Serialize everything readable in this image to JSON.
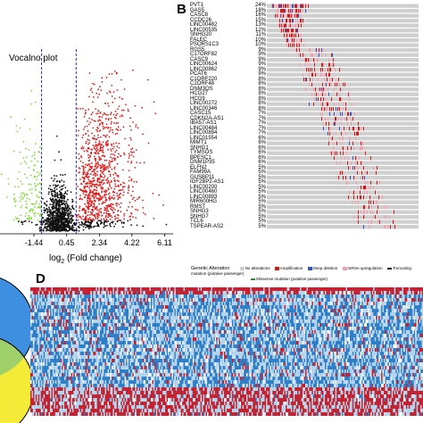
{
  "figure": {
    "panel_b_letter": "B",
    "panel_d_letter": "D",
    "colors": {
      "black": "#111111",
      "green": "#7fdc3a",
      "red": "#e01e1e",
      "blue_line": "#2b2bd4",
      "oncoprint_bg": "#cfcfcf",
      "oncoprint_red": "#d01a1a",
      "oncoprint_pink": "#f2a0b0",
      "oncoprint_blue": "#3355cc",
      "heat_blue": "#2f7fc8",
      "heat_light": "#bcd8ee",
      "heat_red": "#c8202c",
      "venn_blue": "#3e8fe0",
      "venn_yellow": "#f4ea38"
    }
  },
  "volcano": {
    "title": "Vocalno plot",
    "xlabel": "log2 (Fold change)",
    "xlabel_base": "log",
    "xlabel_sub": "2",
    "xlabel_rest": " (Fold change)",
    "ticks": [
      "-1.44",
      "0.45",
      "2.34",
      "4.22",
      "6.11"
    ]
  },
  "chart_data": {
    "type": "scatter",
    "title": "Vocalno plot",
    "xlabel": "log2 (Fold change)",
    "x_ticks": [
      -1.44,
      0.45,
      2.34,
      4.22,
      6.11
    ],
    "xlim": [
      -3.4,
      6.6
    ],
    "threshold_lines": [
      -1.0,
      1.0
    ],
    "series": []
  },
  "oncoprint": {
    "genes": [
      {
        "name": "PVT1",
        "pct": "24%"
      },
      {
        "name": "GAS5",
        "pct": "18%"
      },
      {
        "name": "CASC8",
        "pct": "16%"
      },
      {
        "name": "CCDC26",
        "pct": "15%"
      },
      {
        "name": "LINC00482",
        "pct": "13%"
      },
      {
        "name": "LINC00535",
        "pct": "12%"
      },
      {
        "name": "SNHG20",
        "pct": "11%"
      },
      {
        "name": "FALEC",
        "pct": "10%"
      },
      {
        "name": "PSORS1C3",
        "pct": "10%"
      },
      {
        "name": "RGS5",
        "pct": "9%"
      },
      {
        "name": "C17ORF82",
        "pct": "9%"
      },
      {
        "name": "CASC9",
        "pct": "9%"
      },
      {
        "name": "LINC00624",
        "pct": "9%"
      },
      {
        "name": "LINC00862",
        "pct": "9%"
      },
      {
        "name": "PCAT6",
        "pct": "9%"
      },
      {
        "name": "C1ORF220",
        "pct": "8%"
      },
      {
        "name": "C2ORF48",
        "pct": "8%"
      },
      {
        "name": "DNM3OS",
        "pct": "8%"
      },
      {
        "name": "HCG27",
        "pct": "8%"
      },
      {
        "name": "HCG9",
        "pct": "8%"
      },
      {
        "name": "LINC00272",
        "pct": "8%"
      },
      {
        "name": "LINC00346",
        "pct": "8%"
      },
      {
        "name": "CASC15",
        "pct": "7%"
      },
      {
        "name": "CDKN2A-AS1",
        "pct": "7%"
      },
      {
        "name": "IBA57-AS1",
        "pct": "7%"
      },
      {
        "name": "LINC00484",
        "pct": "7%"
      },
      {
        "name": "LINC00894",
        "pct": "7%"
      },
      {
        "name": "LINC01554",
        "pct": "6%"
      },
      {
        "name": "MIMT1",
        "pct": "6%"
      },
      {
        "name": "SNHG1",
        "pct": "6%"
      },
      {
        "name": "TYMSOS",
        "pct": "6%"
      },
      {
        "name": "BPESC1",
        "pct": "6%"
      },
      {
        "name": "DNM1P35",
        "pct": "6%"
      },
      {
        "name": "ELFN2",
        "pct": "5%"
      },
      {
        "name": "FAM99A",
        "pct": "5%"
      },
      {
        "name": "GUSBP11",
        "pct": "5%"
      },
      {
        "name": "IGF2BP2-AS1",
        "pct": "5%"
      },
      {
        "name": "LINC00200",
        "pct": "5%"
      },
      {
        "name": "LINC00460",
        "pct": "5%"
      },
      {
        "name": "LINC00893",
        "pct": "5%"
      },
      {
        "name": "MIR600HG",
        "pct": "5%"
      },
      {
        "name": "RMST",
        "pct": "5%"
      },
      {
        "name": "SNHG3",
        "pct": "5%"
      },
      {
        "name": "SNHG7",
        "pct": "5%"
      },
      {
        "name": "TCL6",
        "pct": "5%"
      },
      {
        "name": "TSPEAR-AS2",
        "pct": "5%"
      }
    ],
    "legend": {
      "title": "Genetic Alteration",
      "no_alterations": "No alterations",
      "amplification": "Amplification",
      "deep_deletion": "Deep deletion",
      "mrna_up": "mRNA upregulation",
      "truncating": "Truncating mutation (putative passenger)",
      "missense": "Missense mutation (putative passenger)"
    }
  }
}
